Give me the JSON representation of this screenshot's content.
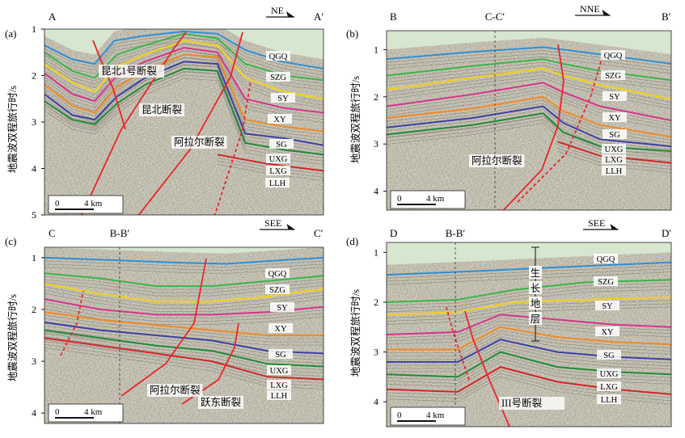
{
  "figure": {
    "panels": [
      {
        "id": "a",
        "label": "(a)",
        "left_endpoint": "A",
        "right_endpoint": "A′",
        "direction": "NE",
        "y_axis_label": "地震波双程旅行时/s",
        "y_ticks": [
          "1",
          "2",
          "3",
          "4",
          "5"
        ],
        "units": [
          "QGQ",
          "SZG",
          "SY",
          "XY",
          "SG",
          "UXG",
          "LXG",
          "LLH"
        ],
        "faults": [
          "昆北1号断裂",
          "昆北断裂",
          "阿拉尔断裂"
        ],
        "scale_bar": {
          "zero": "0",
          "length": "4 km"
        }
      },
      {
        "id": "b",
        "label": "(b)",
        "left_endpoint": "B",
        "right_endpoint": "B′",
        "section_cross": "C-C′",
        "direction": "NNE",
        "y_axis_label": "地震波双程旅行时/s",
        "y_ticks": [
          "1",
          "2",
          "3",
          "4"
        ],
        "units": [
          "QGQ",
          "SZG",
          "SY",
          "XY",
          "SG",
          "UXG",
          "LXG",
          "LLH"
        ],
        "faults": [
          "阿拉尔断裂"
        ],
        "scale_bar": {
          "zero": "0",
          "length": "4 km"
        }
      },
      {
        "id": "c",
        "label": "(c)",
        "left_endpoint": "C",
        "right_endpoint": "C′",
        "section_cross": "B-B′",
        "direction": "SEE",
        "y_axis_label": "地震波双程旅行时/s",
        "y_ticks": [
          "1",
          "2",
          "3",
          "4"
        ],
        "units": [
          "QGQ",
          "SZG",
          "SY",
          "XY",
          "SG",
          "UXG",
          "LXG",
          "LLH"
        ],
        "faults": [
          "阿拉尔断裂",
          "跃东断裂"
        ],
        "scale_bar": {
          "zero": "0",
          "length": "4 km"
        }
      },
      {
        "id": "d",
        "label": "(d)",
        "left_endpoint": "D",
        "right_endpoint": "D′",
        "section_cross": "B-B′",
        "direction": "SEE",
        "y_axis_label": "地震波双程旅行时/s",
        "y_ticks": [
          "1",
          "2",
          "3",
          "4"
        ],
        "units": [
          "QGQ",
          "SZG",
          "SY",
          "XY",
          "SG",
          "UXG",
          "LXG",
          "LLH"
        ],
        "faults": [
          "III号断裂"
        ],
        "growth_strata": [
          "生",
          "长",
          "地",
          "层"
        ],
        "scale_bar": {
          "zero": "0",
          "length": "4 km"
        }
      }
    ],
    "horizon_colors": {
      "QGQ": "#2f8fd8",
      "SZG": "#39b54a",
      "SY": "#f2d21b",
      "XY": "#d6348a",
      "SG": "#f08a24",
      "UXG": "#3d3fa8",
      "LXG": "#1f8a3a",
      "LLH": "#d0262b"
    },
    "fault_color": "#e8262a",
    "seismic_background": "#cfd8c6"
  }
}
